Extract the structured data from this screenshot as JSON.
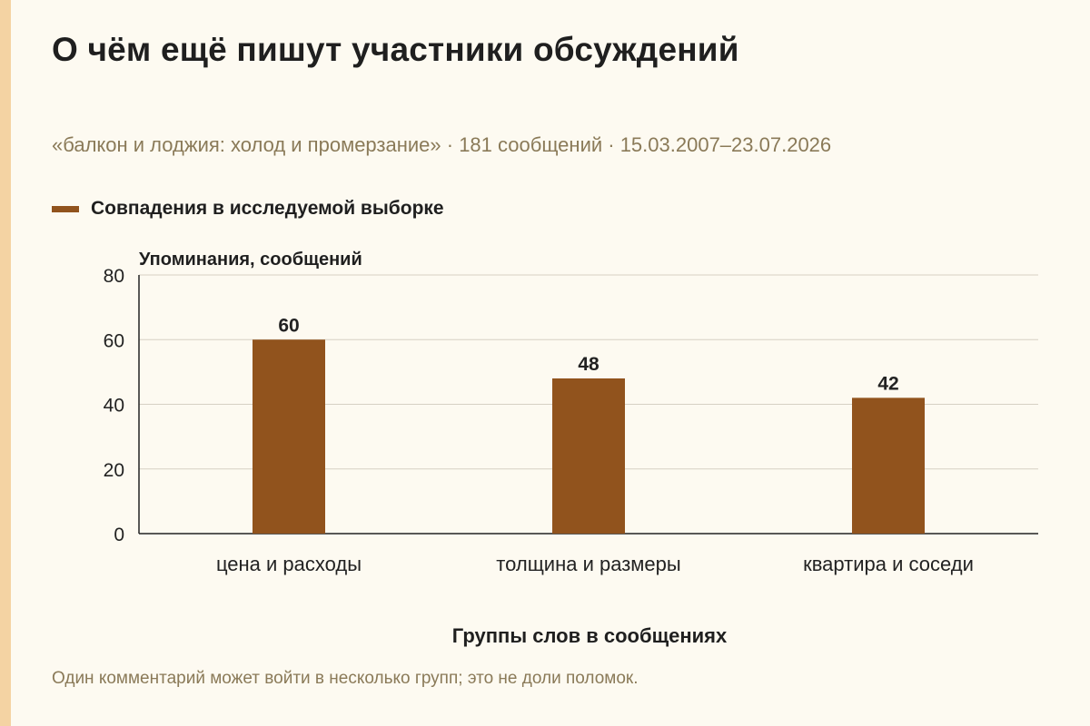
{
  "title": "О чём ещё пишут участники обсуждений",
  "subtitle": "«балкон и лоджия: холод и промерзание» · 181 сообщений · 15.03.2007–23.07.2026",
  "footnote": "Один комментарий может войти в несколько групп; это не доли поломок.",
  "colors": {
    "bar": "#91531d",
    "accent_stripe": "#f4d3a3",
    "grid": "#d6d0c4",
    "axis": "#222222",
    "background": "#fdfaf1"
  },
  "chart_data": {
    "type": "bar",
    "categories": [
      "цена и расходы",
      "толщина и размеры",
      "квартира и соседи"
    ],
    "series": [
      {
        "name": "Совпадения в исследуемой выборке",
        "values": [
          60,
          48,
          42
        ]
      }
    ],
    "xlabel": "Группы слов в сообщениях",
    "ylabel": "Упоминания, сообщений",
    "ylim": [
      0,
      80
    ],
    "yticks": [
      0,
      20,
      40,
      60,
      80
    ],
    "grid": true,
    "legend_position": "top-left",
    "data_labels": true
  }
}
